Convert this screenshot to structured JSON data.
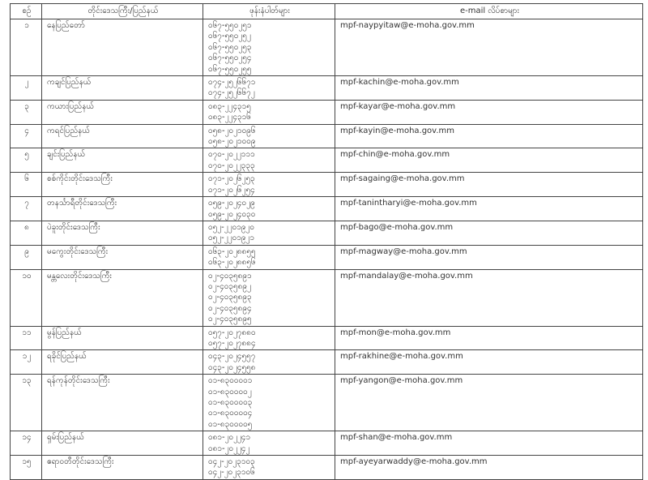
{
  "headers": {
    "no": "စဉ်",
    "region": "တိုင်းဒေသကြီး/ပြည်နယ်",
    "phones": "ဖုန်းနံပါတ်များ",
    "email": "e-mail လိပ်စာများ"
  },
  "rows": [
    {
      "no": "၁",
      "region": "နေပြည်တော်",
      "phones": [
        "၀၆၇-၅၅၀၂၅၁",
        "၀၆၇-၅၅၀၂၅၂",
        "၀၆၇-၅၅၀၂၅၃",
        "၀၆၇-၅၅၀၂၅၄",
        "၀၆၇-၅၅၀၂၅၅"
      ],
      "email": "mpf-naypyitaw@e-moha.gov.mm"
    },
    {
      "no": "၂",
      "region": "ကချင်ပြည်နယ်",
      "phones": [
        "၀၇၄-၂၅၂၆၆၇၁",
        "၀၇၄-၂၅၂၆၆၇၂"
      ],
      "email": "mpf-kachin@e-moha.gov.mm"
    },
    {
      "no": "၃",
      "region": "ကယားပြည်နယ်",
      "phones": [
        "၀၈၃-၂၂၄၃၁၅",
        "၀၈၃-၂၂၄၃၁၆"
      ],
      "email": "mpf-kayar@e-moha.gov.mm"
    },
    {
      "no": "၄",
      "region": "ကရင်ပြည်နယ်",
      "phones": [
        "၀၅၈-၂၀၂၁၀၉၆",
        "၀၅၈-၂၀၂၁၀၀၉"
      ],
      "email": "mpf-kayin@e-moha.gov.mm"
    },
    {
      "no": "၅",
      "region": "ချင်းပြည်နယ်",
      "phones": [
        "၀၇၀-၂၀၂၂၁၁၁",
        "၀၇၀-၂၀၂၂၃၃၃"
      ],
      "email": "mpf-chin@e-moha.gov.mm"
    },
    {
      "no": "၆",
      "region": "စစ်ကိုင်းတိုင်းဒေသကြီး",
      "phones": [
        "၀၇၁-၂၀၂၆၂၅၃",
        "၀၇၁-၂၀၂၆၂၅၄"
      ],
      "email": "mpf-sagaing@e-moha.gov.mm"
    },
    {
      "no": "၇",
      "region": "တနင်္သာရီတိုင်းဒေသကြီး",
      "phones": [
        "၀၅၉-၂၀၂၄၀၂၉",
        "၀၅၉-၂၀၂၄၀၃၀"
      ],
      "email": "mpf-tanintharyi@e-moha.gov.mm"
    },
    {
      "no": "၈",
      "region": "ပဲခူးတိုင်းဒေသကြီး",
      "phones": [
        "၀၅၂-၂၂၀၁၉၂၀",
        "၀၅၂-၂၂၀၁၉၂၁"
      ],
      "email": "mpf-bago@e-moha.gov.mm"
    },
    {
      "no": "၉",
      "region": "မကွေးတိုင်းဒေသကြီး",
      "phones": [
        "၀၆၃-၂၀၂၈၈၅၅",
        "၀၆၃-၂၀၂၈၈၅၆"
      ],
      "email": "mpf-magway@e-moha.gov.mm"
    },
    {
      "no": "၁၀",
      "region": "မန္တလေးတိုင်းဒေသကြီး",
      "phones": [
        "၀၂-၄၀၃၅၈၉၁",
        "၀၂-၄၀၃၅၈၉၂",
        "၀၂-၄၀၃၅၈၉၃",
        "၀၂-၄၀၃၅၈၉၄",
        "၀၂-၄၀၃၅၈၉၅"
      ],
      "email": "mpf-mandalay@e-moha.gov.mm"
    },
    {
      "no": "၁၁",
      "region": "မွန်ပြည်နယ်",
      "phones": [
        "၀၅၇-၂၀၂၇၈၈၀",
        "၀၅၇-၂၀၂၇၈၈၄"
      ],
      "email": "mpf-mon@e-moha.gov.mm"
    },
    {
      "no": "၁၂",
      "region": "ရခိုင်ပြည်နယ်",
      "phones": [
        "၀၄၃-၂၀၂၄၅၅၇",
        "၀၄၃-၂၀၂၄၅၅၈"
      ],
      "email": "mpf-rakhine@e-moha.gov.mm"
    },
    {
      "no": "၁၃",
      "region": "ရန်ကုန်တိုင်းဒေသကြီး",
      "phones": [
        "၀၁-၈၃၀၀၀၀၁",
        "၀၁-၈၃၀၀၀၀၂",
        "၀၁-၈၃၀၀၀၀၃",
        "၀၁-၈၃၀၀၀၀၄",
        "၀၁-၈၃၀၀၀၀၅"
      ],
      "email": "mpf-yangon@e-moha.gov.mm"
    },
    {
      "no": "၁၄",
      "region": "ရှမ်းပြည်နယ်",
      "phones": [
        "၀၈၁-၂၀၂၂၄၁",
        "၀၈၁-၂၀၂၂၄၂"
      ],
      "email": "mpf-shan@e-moha.gov.mm"
    },
    {
      "no": "၁၅",
      "region": "ဧရာဝတီတိုင်းဒေသကြီး",
      "phones": [
        "၀၄၂-၂၀၂၃၁၀၃",
        "၀၄၂-၂၀၂၃၁၀၆"
      ],
      "email": "mpf-ayeyarwaddy@e-moha.gov.mm"
    }
  ]
}
